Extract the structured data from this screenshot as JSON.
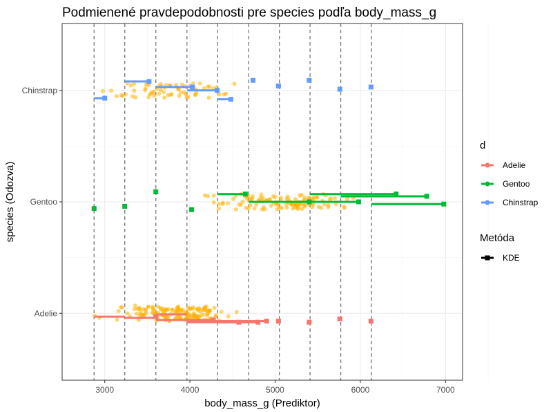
{
  "chart_data": {
    "type": "scatter",
    "title": "Podmienené pravdepodobnosti pre species podľa body_mass_g",
    "xlabel": "body_mass_g (Prediktor)",
    "ylabel": "species (Odozva)",
    "xlim": [
      2500,
      7200
    ],
    "x_ticks": [
      3000,
      4000,
      5000,
      6000,
      7000
    ],
    "x_tick_labels": [
      "3000",
      "4000",
      "5000",
      "6000",
      "7000"
    ],
    "categories": [
      "Adelie",
      "Gentoo",
      "Chinstrap"
    ],
    "grid": true,
    "breakpoints": [
      2875,
      3235,
      3600,
      3965,
      4325,
      4690,
      5050,
      5410,
      5770,
      6130
    ],
    "legend": {
      "position": "right",
      "color_title": "d",
      "color_entries": [
        {
          "name": "Adelie",
          "color": "#f8766d"
        },
        {
          "name": "Gentoo",
          "color": "#00ba38"
        },
        {
          "name": "Chinstrap",
          "color": "#619cff"
        }
      ],
      "method_title": "Metóda",
      "method_entries": [
        "KDE"
      ]
    },
    "series": [
      {
        "name": "Adelie",
        "color": "#f8766d",
        "segments": [
          {
            "x0": 2875,
            "x1": 3235,
            "y": 0.97
          },
          {
            "x0": 3235,
            "x1": 3600,
            "y": 0.96
          },
          {
            "x0": 3600,
            "x1": 3965,
            "y": 0.99
          },
          {
            "x0": 3600,
            "x1": 4275,
            "y": 0.94
          },
          {
            "x0": 3965,
            "x1": 4325,
            "y": 0.93
          },
          {
            "x0": 3965,
            "x1": 4575,
            "y": 0.92
          },
          {
            "x0": 4325,
            "x1": 4690,
            "y": 0.93
          },
          {
            "x0": 4325,
            "x1": 4800,
            "y": 0.92
          },
          {
            "x0": 4690,
            "x1": 4900,
            "y": 0.93
          }
        ],
        "points": [
          {
            "x": 3600,
            "y": 0.97
          },
          {
            "x": 4275,
            "y": 0.94
          },
          {
            "x": 4575,
            "y": 0.92
          },
          {
            "x": 4800,
            "y": 0.92
          },
          {
            "x": 4900,
            "y": 0.93
          },
          {
            "x": 5040,
            "y": 0.93
          },
          {
            "x": 5400,
            "y": 0.92
          },
          {
            "x": 5760,
            "y": 0.95
          },
          {
            "x": 6125,
            "y": 0.93
          }
        ]
      },
      {
        "name": "Gentoo",
        "color": "#00ba38",
        "segments": [
          {
            "x0": 4325,
            "x1": 4650,
            "y": 2.07
          },
          {
            "x0": 4690,
            "x1": 5400,
            "y": 2.0
          },
          {
            "x0": 5050,
            "x1": 5980,
            "y": 2.0
          },
          {
            "x0": 5410,
            "x1": 6420,
            "y": 2.07
          },
          {
            "x0": 5770,
            "x1": 6780,
            "y": 2.05
          },
          {
            "x0": 6130,
            "x1": 6980,
            "y": 1.98
          }
        ],
        "points": [
          {
            "x": 2875,
            "y": 1.94
          },
          {
            "x": 3235,
            "y": 1.96
          },
          {
            "x": 3600,
            "y": 2.09
          },
          {
            "x": 4020,
            "y": 1.93
          },
          {
            "x": 4650,
            "y": 2.07
          },
          {
            "x": 5400,
            "y": 2.0
          },
          {
            "x": 5980,
            "y": 2.0
          },
          {
            "x": 6420,
            "y": 2.07
          },
          {
            "x": 6780,
            "y": 2.05
          },
          {
            "x": 6980,
            "y": 1.98
          }
        ]
      },
      {
        "name": "Chinstrap",
        "color": "#619cff",
        "segments": [
          {
            "x0": 2875,
            "x1": 3000,
            "y": 2.93
          },
          {
            "x0": 3235,
            "x1": 3520,
            "y": 3.08
          },
          {
            "x0": 3600,
            "x1": 4030,
            "y": 3.03
          },
          {
            "x0": 3965,
            "x1": 4320,
            "y": 3.0
          },
          {
            "x0": 4325,
            "x1": 4480,
            "y": 2.92
          }
        ],
        "points": [
          {
            "x": 3000,
            "y": 2.93
          },
          {
            "x": 3520,
            "y": 3.08
          },
          {
            "x": 4030,
            "y": 3.03
          },
          {
            "x": 4320,
            "y": 3.0
          },
          {
            "x": 4480,
            "y": 2.92
          },
          {
            "x": 4740,
            "y": 3.09
          },
          {
            "x": 5040,
            "y": 3.04
          },
          {
            "x": 5400,
            "y": 3.09
          },
          {
            "x": 5760,
            "y": 3.01
          },
          {
            "x": 6125,
            "y": 3.03
          }
        ]
      },
      {
        "name": "observations",
        "color": "#ffb000",
        "groups": [
          {
            "category": "Adelie",
            "x_min": 2850,
            "x_max": 4775,
            "y_spread": 0.07,
            "count": 152,
            "seed": 11
          },
          {
            "category": "Gentoo",
            "x_min": 3950,
            "x_max": 6300,
            "y_spread": 0.07,
            "count": 123,
            "seed": 23
          },
          {
            "category": "Chinstrap",
            "x_min": 2700,
            "x_max": 4800,
            "y_spread": 0.07,
            "count": 68,
            "seed": 37
          }
        ]
      }
    ]
  }
}
